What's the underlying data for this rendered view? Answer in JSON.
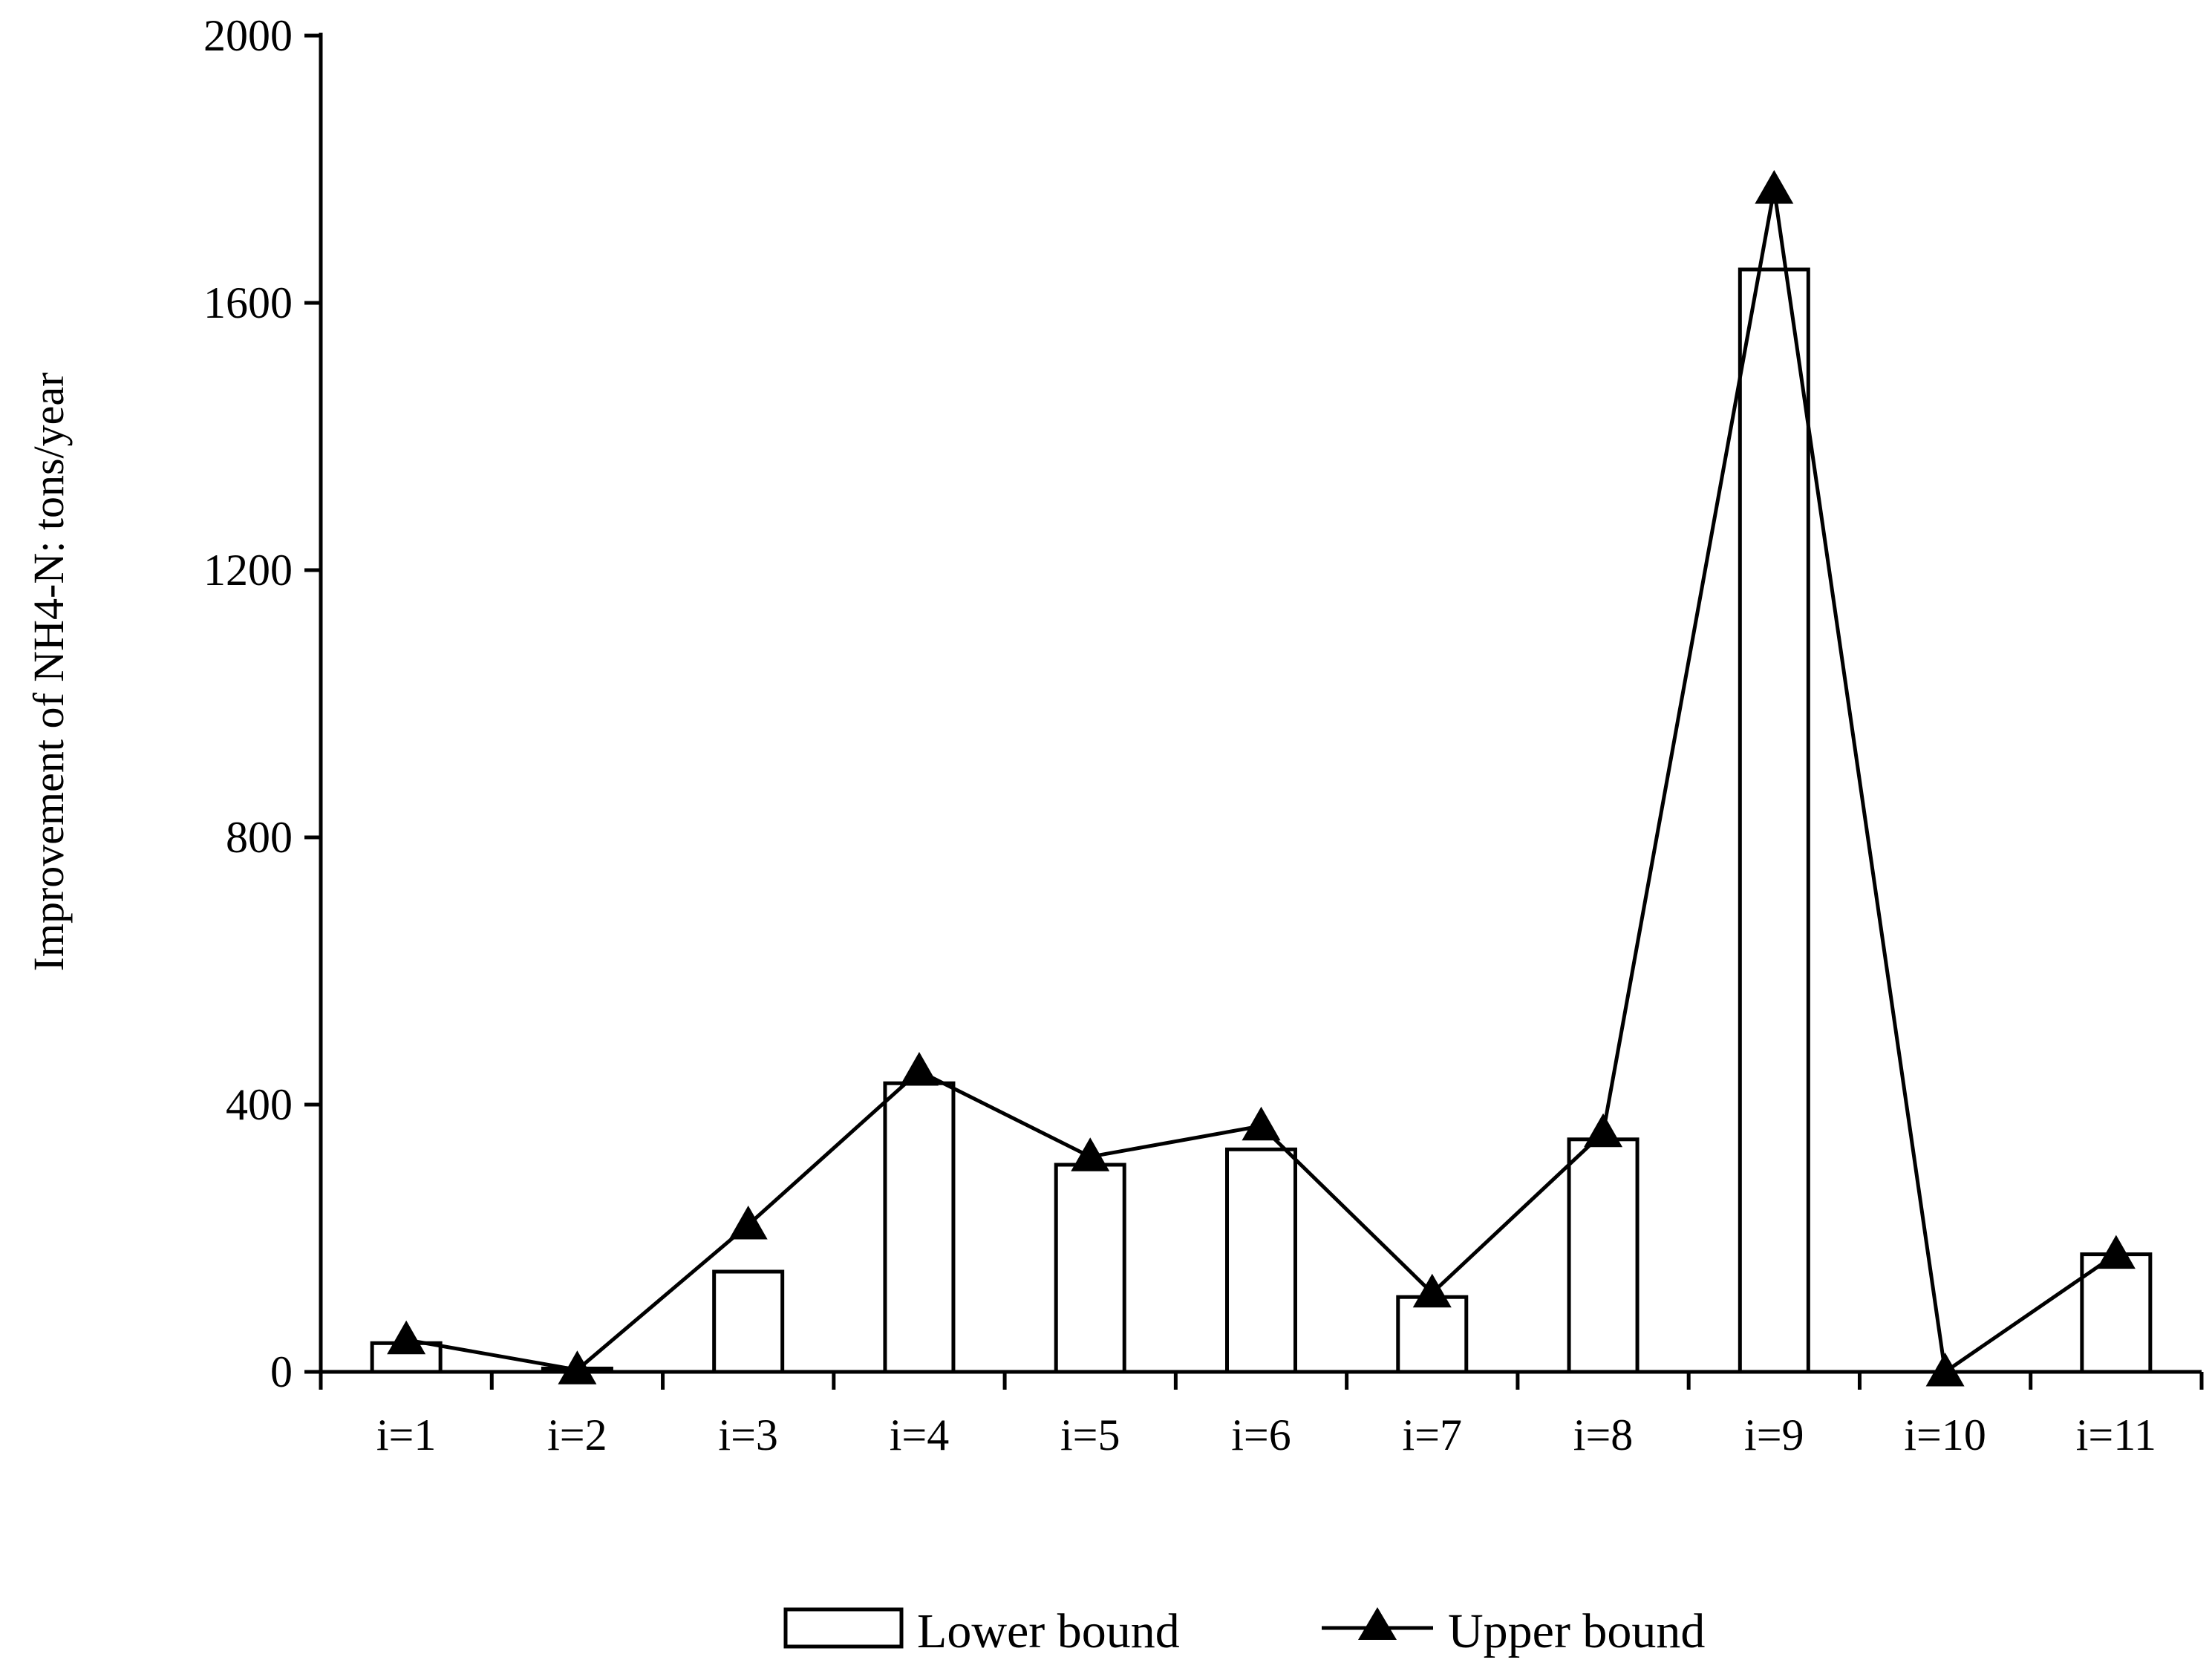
{
  "chart_data": {
    "type": "bar",
    "title": "",
    "xlabel": "",
    "ylabel": "Improvement  of NH4-N: tons/year",
    "categories": [
      "i=1",
      "i=2",
      "i=3",
      "i=4",
      "i=5",
      "i=6",
      "i=7",
      "i=8",
      "i=9",
      "i=10",
      "i=11"
    ],
    "ylim": [
      0,
      2000
    ],
    "yticks": [
      0,
      400,
      800,
      1200,
      1600,
      2000
    ],
    "ytick_labels": [
      "0",
      "400",
      "800",
      "1200",
      "1600",
      "2000"
    ],
    "series": [
      {
        "name": "Lower bound",
        "type": "bar",
        "values": [
          43,
          5,
          150,
          432,
          310,
          333,
          112,
          348,
          1650,
          0,
          176
        ]
      },
      {
        "name": "Upper bound",
        "type": "line",
        "marker": "triangle",
        "values": [
          48,
          3,
          220,
          450,
          322,
          368,
          118,
          358,
          1770,
          0,
          176
        ]
      }
    ],
    "grid": false,
    "legend_position": "bottom-center",
    "colors": {
      "axis": "#000000",
      "bar_fill": "#ffffff",
      "bar_stroke": "#000000",
      "line": "#000000"
    }
  }
}
